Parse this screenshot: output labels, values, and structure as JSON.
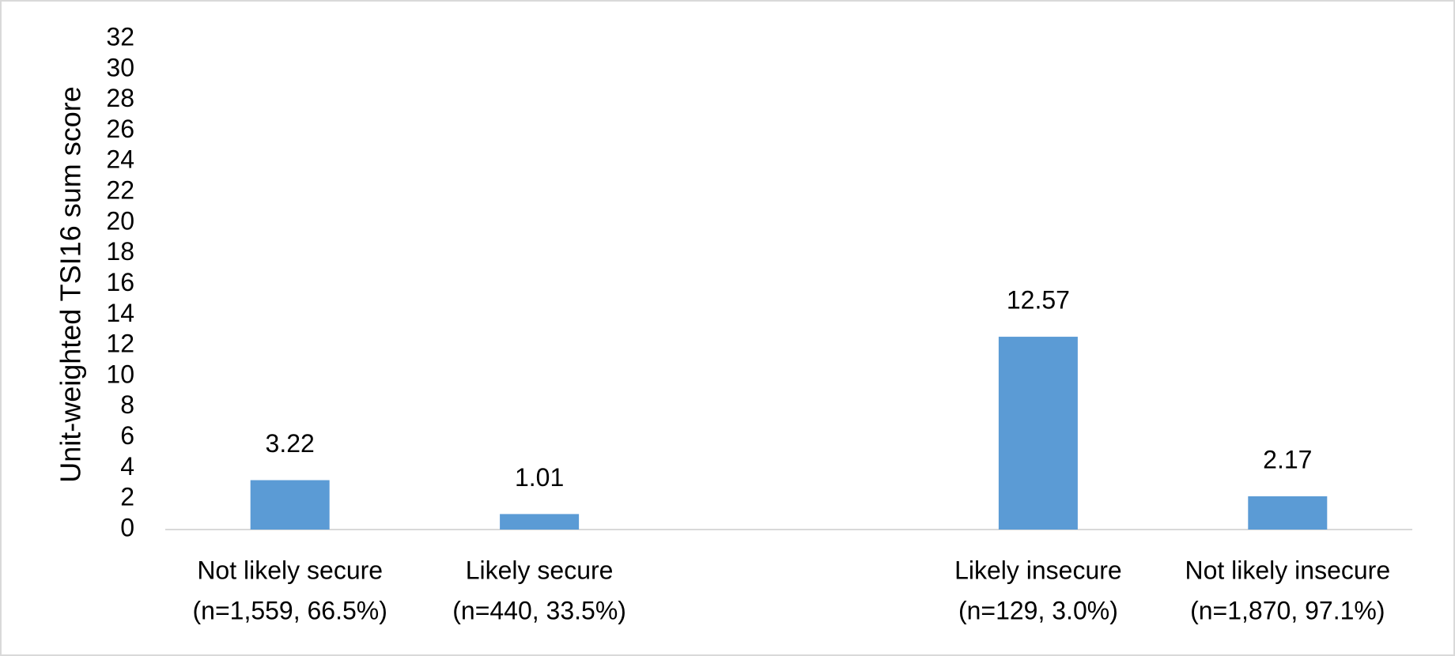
{
  "chart_data": {
    "type": "bar",
    "y_label": "Unit-weighted TSI16 sum score",
    "categories": [
      [
        "Not likely secure",
        "(n=1,559, 66.5%)"
      ],
      [
        "Likely secure",
        "(n=440, 33.5%)"
      ],
      null,
      [
        "Likely insecure",
        "(n=129, 3.0%)"
      ],
      [
        "Not likely insecure",
        "(n=1,870, 97.1%)"
      ]
    ],
    "values": [
      3.22,
      1.01,
      null,
      12.57,
      2.17
    ],
    "color": "#5b9bd5",
    "ylim": [
      0,
      32
    ],
    "yticks": [
      0,
      2,
      4,
      6,
      8,
      10,
      12,
      14,
      16,
      18,
      20,
      22,
      24,
      26,
      28,
      30,
      32
    ],
    "grid": false
  }
}
